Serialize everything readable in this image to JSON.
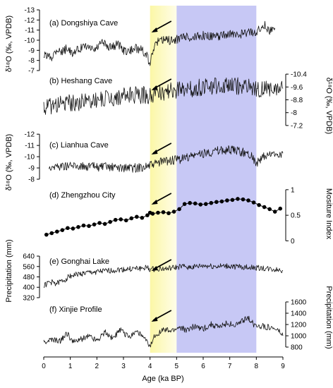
{
  "chart_data": {
    "type": "line",
    "xlabel": "Age (ka BP)",
    "xlim": [
      0,
      9
    ],
    "x_ticks": [
      "0",
      "1",
      "2",
      "3",
      "4",
      "5",
      "6",
      "7",
      "8",
      "9"
    ],
    "bands": [
      {
        "x0": 4.0,
        "x1": 5.0,
        "color": "#fbf7a6",
        "fade_to": "#fffde8"
      },
      {
        "x0": 5.0,
        "x1": 8.0,
        "color": "#c7c8f5"
      }
    ],
    "panels": [
      {
        "key": "a",
        "label": "(a) Dongshiya Cave",
        "side": "left",
        "ylim": [
          -7,
          -13
        ],
        "ticks": [
          -13,
          -12,
          -11,
          -10,
          -9,
          -8,
          -7
        ],
        "tick_labels": [
          "-13",
          "-12",
          "-11",
          "-10",
          "-9",
          "-8",
          "-7"
        ],
        "points": [
          [
            0,
            -8.5
          ],
          [
            0.3,
            -8.4
          ],
          [
            0.5,
            -9.2
          ],
          [
            0.7,
            -8.8
          ],
          [
            0.9,
            -9.3
          ],
          [
            1.1,
            -8.5
          ],
          [
            1.3,
            -9.1
          ],
          [
            1.6,
            -9.4
          ],
          [
            1.9,
            -9.0
          ],
          [
            2.2,
            -9.8
          ],
          [
            2.5,
            -9.3
          ],
          [
            2.8,
            -9.6
          ],
          [
            3.1,
            -8.8
          ],
          [
            3.4,
            -9.2
          ],
          [
            3.7,
            -9.1
          ],
          [
            3.9,
            -8.3
          ],
          [
            4.0,
            -7.5
          ],
          [
            4.1,
            -8.9
          ],
          [
            4.3,
            -9.9
          ],
          [
            4.6,
            -10.1
          ],
          [
            4.9,
            -9.9
          ],
          [
            5.2,
            -10.4
          ],
          [
            5.6,
            -10.2
          ],
          [
            6.0,
            -10.5
          ],
          [
            6.4,
            -10.3
          ],
          [
            6.8,
            -10.6
          ],
          [
            7.2,
            -10.5
          ],
          [
            7.6,
            -10.7
          ],
          [
            8.0,
            -10.9
          ],
          [
            8.3,
            -11.5
          ],
          [
            8.5,
            -11.0
          ],
          [
            8.7,
            -11.2
          ]
        ],
        "noise": 0.45,
        "seed": 11
      },
      {
        "key": "b",
        "label": "(b) Heshang Cave",
        "side": "right",
        "ylim": [
          -6.8,
          -10.8
        ],
        "ticks": [
          -10.4,
          -9.6,
          -8.8,
          -8,
          -7.2
        ],
        "tick_labels": [
          "-10.4",
          "-9.6",
          "-8.8",
          "-8",
          "-7.2"
        ],
        "points": [
          [
            0,
            -8.3
          ],
          [
            0.5,
            -8.5
          ],
          [
            1.0,
            -8.6
          ],
          [
            1.5,
            -8.7
          ],
          [
            2.0,
            -8.8
          ],
          [
            2.5,
            -8.9
          ],
          [
            3.0,
            -9.0
          ],
          [
            3.5,
            -9.1
          ],
          [
            4.0,
            -9.1
          ],
          [
            4.5,
            -9.3
          ],
          [
            5.0,
            -9.4
          ],
          [
            5.5,
            -9.5
          ],
          [
            6.0,
            -9.6
          ],
          [
            6.5,
            -9.7
          ],
          [
            7.0,
            -9.7
          ],
          [
            7.5,
            -9.6
          ],
          [
            8.0,
            -9.5
          ],
          [
            8.5,
            -9.4
          ],
          [
            9.0,
            -9.5
          ]
        ],
        "noise": 0.55,
        "seed": 23
      },
      {
        "key": "c",
        "label": "(c) Lianhua Cave",
        "side": "left",
        "ylim": [
          -7.5,
          -12.2
        ],
        "ticks": [
          -12,
          -11,
          -10,
          -9,
          -8
        ],
        "tick_labels": [
          "-12",
          "-11",
          "-10",
          "-9",
          "-8"
        ],
        "points": [
          [
            0.2,
            -9.1
          ],
          [
            1.0,
            -9.2
          ],
          [
            2.0,
            -9.1
          ],
          [
            3.0,
            -9.0
          ],
          [
            3.5,
            -9.0
          ],
          [
            4.0,
            -9.2
          ],
          [
            4.5,
            -9.6
          ],
          [
            5.0,
            -9.7
          ],
          [
            5.5,
            -10.0
          ],
          [
            6.0,
            -10.3
          ],
          [
            6.5,
            -10.5
          ],
          [
            7.0,
            -10.6
          ],
          [
            7.5,
            -10.4
          ],
          [
            7.8,
            -10.2
          ],
          [
            8.0,
            -9.4
          ],
          [
            8.3,
            -10.0
          ],
          [
            8.6,
            -10.2
          ],
          [
            9.0,
            -10.3
          ]
        ],
        "noise": 0.4,
        "seed": 37
      },
      {
        "key": "d",
        "label": "(d) Zhengzhou City",
        "side": "right",
        "ylim": [
          -0.05,
          1.15
        ],
        "ticks": [
          0,
          0.5,
          1
        ],
        "tick_labels": [
          "0",
          "0.5",
          "1"
        ],
        "markers": true,
        "points": [
          [
            0.1,
            0.12
          ],
          [
            0.3,
            0.15
          ],
          [
            0.5,
            0.18
          ],
          [
            0.7,
            0.21
          ],
          [
            0.9,
            0.25
          ],
          [
            1.1,
            0.24
          ],
          [
            1.3,
            0.27
          ],
          [
            1.5,
            0.3
          ],
          [
            1.7,
            0.29
          ],
          [
            1.9,
            0.32
          ],
          [
            2.1,
            0.35
          ],
          [
            2.3,
            0.33
          ],
          [
            2.5,
            0.37
          ],
          [
            2.7,
            0.41
          ],
          [
            2.9,
            0.42
          ],
          [
            3.1,
            0.4
          ],
          [
            3.3,
            0.44
          ],
          [
            3.5,
            0.47
          ],
          [
            3.7,
            0.45
          ],
          [
            3.9,
            0.5
          ],
          [
            4.0,
            0.55
          ],
          [
            4.1,
            0.53
          ],
          [
            4.3,
            0.55
          ],
          [
            4.5,
            0.56
          ],
          [
            4.7,
            0.54
          ],
          [
            4.9,
            0.57
          ],
          [
            5.1,
            0.62
          ],
          [
            5.3,
            0.72
          ],
          [
            5.5,
            0.74
          ],
          [
            5.7,
            0.73
          ],
          [
            5.9,
            0.71
          ],
          [
            6.1,
            0.72
          ],
          [
            6.3,
            0.74
          ],
          [
            6.5,
            0.76
          ],
          [
            6.7,
            0.77
          ],
          [
            6.9,
            0.79
          ],
          [
            7.1,
            0.8
          ],
          [
            7.3,
            0.82
          ],
          [
            7.5,
            0.81
          ],
          [
            7.7,
            0.79
          ],
          [
            7.9,
            0.75
          ],
          [
            8.1,
            0.7
          ],
          [
            8.3,
            0.66
          ],
          [
            8.5,
            0.62
          ],
          [
            8.7,
            0.57
          ],
          [
            8.9,
            0.63
          ]
        ],
        "noise": 0,
        "seed": 0
      },
      {
        "key": "e",
        "label": "(e) Gonghai Lake",
        "side": "left",
        "ylim": [
          260,
          700
        ],
        "ticks": [
          320,
          400,
          480,
          560,
          640
        ],
        "tick_labels": [
          "320",
          "400",
          "480",
          "560",
          "640"
        ],
        "points": [
          [
            0,
            410
          ],
          [
            0.2,
            440
          ],
          [
            0.5,
            430
          ],
          [
            0.8,
            460
          ],
          [
            1.0,
            490
          ],
          [
            1.3,
            500
          ],
          [
            1.6,
            510
          ],
          [
            2.0,
            520
          ],
          [
            2.4,
            525
          ],
          [
            2.8,
            535
          ],
          [
            3.2,
            540
          ],
          [
            3.6,
            545
          ],
          [
            3.9,
            550
          ],
          [
            4.0,
            535
          ],
          [
            4.3,
            545
          ],
          [
            4.6,
            540
          ],
          [
            4.9,
            550
          ],
          [
            5.2,
            560
          ],
          [
            5.6,
            555
          ],
          [
            6.0,
            565
          ],
          [
            6.5,
            560
          ],
          [
            7.0,
            562
          ],
          [
            7.5,
            555
          ],
          [
            8.0,
            550
          ],
          [
            8.5,
            540
          ],
          [
            9.0,
            530
          ]
        ],
        "noise": 22,
        "seed": 51
      },
      {
        "key": "f",
        "label": "(f) Xinjie Profile",
        "side": "right",
        "ylim": [
          700,
          1700
        ],
        "ticks": [
          800,
          1000,
          1200,
          1400,
          1600
        ],
        "tick_labels": [
          "800",
          "1000",
          "1200",
          "1400",
          "1600"
        ],
        "points": [
          [
            0,
            880
          ],
          [
            0.3,
            930
          ],
          [
            0.6,
            900
          ],
          [
            0.9,
            1050
          ],
          [
            1.1,
            880
          ],
          [
            1.4,
            940
          ],
          [
            1.7,
            1000
          ],
          [
            2.0,
            920
          ],
          [
            2.3,
            1070
          ],
          [
            2.6,
            960
          ],
          [
            2.9,
            1100
          ],
          [
            3.2,
            980
          ],
          [
            3.5,
            1090
          ],
          [
            3.8,
            940
          ],
          [
            4.0,
            800
          ],
          [
            4.2,
            1020
          ],
          [
            4.5,
            1100
          ],
          [
            4.8,
            1080
          ],
          [
            5.1,
            1150
          ],
          [
            5.4,
            1100
          ],
          [
            5.7,
            1180
          ],
          [
            6.0,
            1120
          ],
          [
            6.3,
            1200
          ],
          [
            6.6,
            1150
          ],
          [
            6.9,
            1230
          ],
          [
            7.2,
            1180
          ],
          [
            7.5,
            1260
          ],
          [
            7.7,
            1320
          ],
          [
            7.9,
            1200
          ],
          [
            8.2,
            1170
          ],
          [
            8.5,
            1150
          ],
          [
            8.8,
            1100
          ],
          [
            9.0,
            1000
          ]
        ],
        "noise": 55,
        "seed": 67
      }
    ],
    "axis_labels": {
      "left_a": "δ¹⁸O (‰, VPDB)",
      "left_c": "δ¹⁸O (‰, VPDB)",
      "left_e": "Precipitation (mm)",
      "right_b": "δ¹⁸O (‰, VPDB)",
      "right_d": "Mositure Index",
      "right_f": "Precipitation (mm)"
    }
  }
}
